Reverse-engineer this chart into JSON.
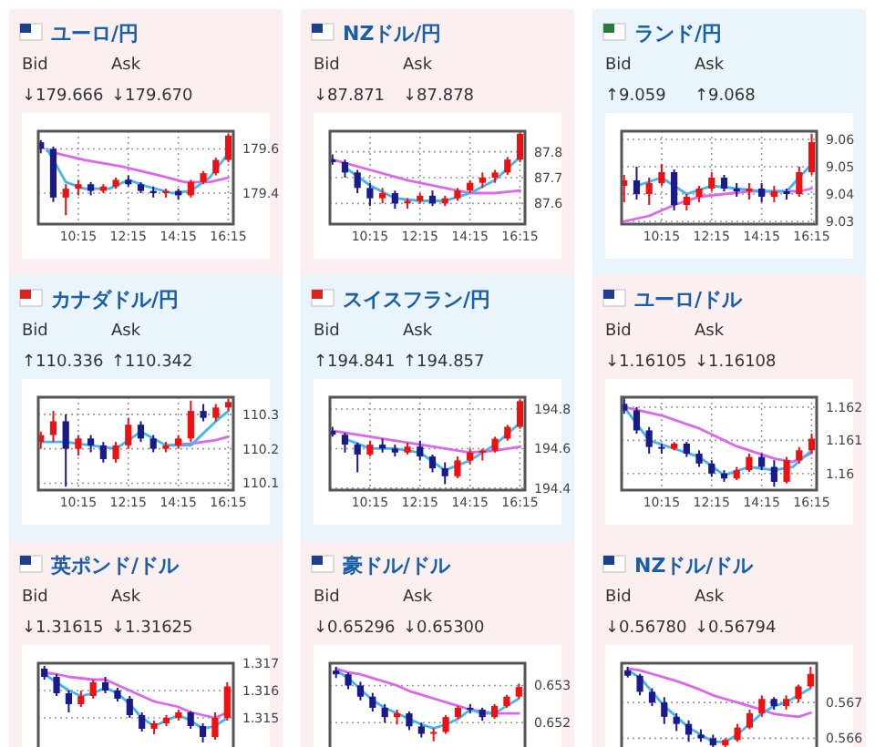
{
  "chart_data": [
    {
      "type": "candlestick",
      "title": "ユーロ/円",
      "annotations": [
        "Bid",
        "Ask",
        "↓179.666",
        "↓179.670"
      ],
      "x": [
        8.75,
        9.25,
        9.75,
        10.25,
        10.75,
        11.25,
        11.75,
        12.25,
        12.75,
        13.25,
        13.75,
        14.25,
        14.75,
        15.25,
        15.75,
        16.25
      ],
      "ohlc": [
        [
          179.63,
          179.64,
          179.58,
          179.6
        ],
        [
          179.6,
          179.61,
          179.36,
          179.38
        ],
        [
          179.38,
          179.44,
          179.3,
          179.42
        ],
        [
          179.42,
          179.46,
          179.39,
          179.44
        ],
        [
          179.44,
          179.45,
          179.39,
          179.41
        ],
        [
          179.41,
          179.44,
          179.4,
          179.43
        ],
        [
          179.43,
          179.47,
          179.42,
          179.46
        ],
        [
          179.46,
          179.48,
          179.43,
          179.44
        ],
        [
          179.44,
          179.45,
          179.4,
          179.41
        ],
        [
          179.41,
          179.43,
          179.38,
          179.4
        ],
        [
          179.4,
          179.42,
          179.38,
          179.41
        ],
        [
          179.41,
          179.42,
          179.37,
          179.39
        ],
        [
          179.39,
          179.46,
          179.38,
          179.45
        ],
        [
          179.45,
          179.5,
          179.44,
          179.49
        ],
        [
          179.49,
          179.56,
          179.48,
          179.55
        ],
        [
          179.55,
          179.67,
          179.54,
          179.66
        ]
      ],
      "colors": [
        "#1a1a8c",
        "#1a1a8c",
        "#ee1111",
        "#ee1111",
        "#1a1a8c",
        "#ee1111",
        "#ee1111",
        "#1a1a8c",
        "#1a1a8c",
        "#1a1a8c",
        "#ee1111",
        "#1a1a8c",
        "#ee1111",
        "#ee1111",
        "#ee1111",
        "#ee1111"
      ],
      "series": [
        {
          "type": "line",
          "color": "#dd66ee",
          "x": [
            9.0,
            10.5,
            12.0,
            13.5,
            14.5,
            15.5,
            16.25
          ],
          "values": [
            179.59,
            179.55,
            179.52,
            179.48,
            179.45,
            179.45,
            179.47
          ]
        },
        {
          "type": "line",
          "color": "#44b4f4",
          "x": [
            9.0,
            9.75,
            10.5,
            11.5,
            12.25,
            13.0,
            14.0,
            14.75,
            15.5,
            16.25
          ],
          "values": [
            179.6,
            179.45,
            179.42,
            179.42,
            179.46,
            179.43,
            179.4,
            179.41,
            179.47,
            179.58
          ]
        }
      ],
      "xlim": [
        8.65,
        16.45
      ],
      "ylim": [
        179.26,
        179.68
      ],
      "xticks": [
        {
          "value": 10.25,
          "label": "10:15"
        },
        {
          "value": 12.25,
          "label": "12:15"
        },
        {
          "value": 14.25,
          "label": "14:15"
        },
        {
          "value": 16.25,
          "label": "16:15"
        }
      ],
      "yticks": [
        179.4,
        179.6
      ],
      "grid": true
    },
    {
      "type": "candlestick",
      "title": "NZドル/円",
      "annotations": [
        "Bid",
        "Ask",
        "↓87.871",
        "↓87.878"
      ],
      "x": [
        8.75,
        9.25,
        9.75,
        10.25,
        10.75,
        11.25,
        11.75,
        12.25,
        12.75,
        13.25,
        13.75,
        14.25,
        14.75,
        15.25,
        15.75,
        16.25
      ],
      "ohlc": [
        [
          87.77,
          87.79,
          87.75,
          87.76
        ],
        [
          87.76,
          87.77,
          87.7,
          87.72
        ],
        [
          87.72,
          87.73,
          87.64,
          87.66
        ],
        [
          87.66,
          87.68,
          87.59,
          87.62
        ],
        [
          87.62,
          87.66,
          87.6,
          87.64
        ],
        [
          87.64,
          87.65,
          87.58,
          87.6
        ],
        [
          87.6,
          87.62,
          87.58,
          87.61
        ],
        [
          87.61,
          87.64,
          87.6,
          87.63
        ],
        [
          87.63,
          87.65,
          87.59,
          87.6
        ],
        [
          87.6,
          87.63,
          87.59,
          87.62
        ],
        [
          87.62,
          87.66,
          87.61,
          87.65
        ],
        [
          87.65,
          87.69,
          87.64,
          87.68
        ],
        [
          87.68,
          87.72,
          87.66,
          87.7
        ],
        [
          87.7,
          87.73,
          87.68,
          87.72
        ],
        [
          87.72,
          87.78,
          87.71,
          87.77
        ],
        [
          87.77,
          87.875,
          87.76,
          87.87
        ]
      ],
      "colors": [
        "#1a1a8c",
        "#1a1a8c",
        "#1a1a8c",
        "#1a1a8c",
        "#ee1111",
        "#1a1a8c",
        "#ee1111",
        "#ee1111",
        "#1a1a8c",
        "#ee1111",
        "#ee1111",
        "#ee1111",
        "#ee1111",
        "#ee1111",
        "#ee1111",
        "#ee1111"
      ],
      "series": [
        {
          "type": "line",
          "color": "#dd66ee",
          "x": [
            8.75,
            10.25,
            11.75,
            13.25,
            14.25,
            15.25,
            16.25
          ],
          "values": [
            87.77,
            87.73,
            87.69,
            87.66,
            87.64,
            87.64,
            87.65
          ]
        },
        {
          "type": "line",
          "color": "#44b4f4",
          "x": [
            9.25,
            10.25,
            11.25,
            12.25,
            13.25,
            14.25,
            15.25,
            16.25
          ],
          "values": [
            87.74,
            87.67,
            87.62,
            87.61,
            87.61,
            87.64,
            87.69,
            87.78
          ]
        }
      ],
      "xlim": [
        8.65,
        16.45
      ],
      "ylim": [
        87.52,
        87.88
      ],
      "xticks": [
        {
          "value": 10.25,
          "label": "10:15"
        },
        {
          "value": 12.25,
          "label": "12:15"
        },
        {
          "value": 14.25,
          "label": "14:15"
        },
        {
          "value": 16.25,
          "label": "16:15"
        }
      ],
      "yticks": [
        87.6,
        87.7,
        87.8
      ],
      "grid": true
    },
    {
      "type": "candlestick",
      "title": "ランド/円",
      "annotations": [
        "Bid",
        "Ask",
        "↑9.059",
        "↑9.068"
      ],
      "x": [
        8.75,
        9.25,
        9.75,
        10.25,
        10.75,
        11.25,
        11.75,
        12.25,
        12.75,
        13.25,
        13.75,
        14.25,
        14.75,
        15.25,
        15.75,
        16.25
      ],
      "ohlc": [
        [
          9.043,
          9.047,
          9.037,
          9.045
        ],
        [
          9.045,
          9.05,
          9.038,
          9.04
        ],
        [
          9.04,
          9.046,
          9.036,
          9.044
        ],
        [
          9.044,
          9.051,
          9.043,
          9.048
        ],
        [
          9.048,
          9.049,
          9.034,
          9.036
        ],
        [
          9.036,
          9.04,
          9.034,
          9.039
        ],
        [
          9.039,
          9.043,
          9.037,
          9.042
        ],
        [
          9.042,
          9.048,
          9.041,
          9.046
        ],
        [
          9.046,
          9.047,
          9.041,
          9.042
        ],
        [
          9.042,
          9.044,
          9.039,
          9.041
        ],
        [
          9.041,
          9.044,
          9.038,
          9.042
        ],
        [
          9.042,
          9.044,
          9.037,
          9.039
        ],
        [
          9.039,
          9.043,
          9.037,
          9.041
        ],
        [
          9.041,
          9.042,
          9.038,
          9.04
        ],
        [
          9.04,
          9.05,
          9.039,
          9.048
        ],
        [
          9.048,
          9.062,
          9.047,
          9.059
        ]
      ],
      "colors": [
        "#ee1111",
        "#1a1a8c",
        "#ee1111",
        "#ee1111",
        "#1a1a8c",
        "#ee1111",
        "#ee1111",
        "#ee1111",
        "#1a1a8c",
        "#1a1a8c",
        "#ee1111",
        "#1a1a8c",
        "#ee1111",
        "#1a1a8c",
        "#ee1111",
        "#ee1111"
      ],
      "series": [
        {
          "type": "line",
          "color": "#dd66ee",
          "x": [
            8.75,
            9.75,
            10.75,
            11.75,
            12.75,
            13.75,
            14.75,
            15.75,
            16.25
          ],
          "values": [
            9.03,
            9.032,
            9.036,
            9.039,
            9.04,
            9.041,
            9.041,
            9.041,
            9.042
          ]
        },
        {
          "type": "line",
          "color": "#44b4f4",
          "x": [
            9.25,
            10.25,
            11.25,
            12.25,
            13.25,
            14.25,
            15.25,
            16.25
          ],
          "values": [
            9.043,
            9.046,
            9.04,
            9.043,
            9.042,
            9.041,
            9.041,
            9.051
          ]
        }
      ],
      "xlim": [
        8.65,
        16.45
      ],
      "ylim": [
        9.029,
        9.063
      ],
      "xticks": [
        {
          "value": 10.25,
          "label": "10:15"
        },
        {
          "value": 12.25,
          "label": "12:15"
        },
        {
          "value": 14.25,
          "label": "14:15"
        },
        {
          "value": 16.25,
          "label": "16:15"
        }
      ],
      "yticks": [
        9.03,
        9.04,
        9.05,
        9.06
      ],
      "grid": true
    },
    {
      "type": "candlestick",
      "title": "カナダドル/円",
      "annotations": [
        "Bid",
        "Ask",
        "↑110.336",
        "↑110.342"
      ],
      "x": [
        8.75,
        9.25,
        9.75,
        10.25,
        10.75,
        11.25,
        11.75,
        12.25,
        12.75,
        13.25,
        13.75,
        14.25,
        14.75,
        15.25,
        15.75,
        16.25
      ],
      "ohlc": [
        [
          110.22,
          110.25,
          110.2,
          110.24
        ],
        [
          110.24,
          110.31,
          110.22,
          110.28
        ],
        [
          110.28,
          110.3,
          110.09,
          110.2
        ],
        [
          110.2,
          110.24,
          110.18,
          110.23
        ],
        [
          110.23,
          110.24,
          110.19,
          110.21
        ],
        [
          110.21,
          110.22,
          110.16,
          110.17
        ],
        [
          110.17,
          110.22,
          110.16,
          110.21
        ],
        [
          110.21,
          110.29,
          110.2,
          110.27
        ],
        [
          110.27,
          110.28,
          110.22,
          110.23
        ],
        [
          110.23,
          110.24,
          110.19,
          110.2
        ],
        [
          110.2,
          110.22,
          110.19,
          110.21
        ],
        [
          110.21,
          110.24,
          110.2,
          110.23
        ],
        [
          110.23,
          110.34,
          110.22,
          110.31
        ],
        [
          110.31,
          110.33,
          110.28,
          110.29
        ],
        [
          110.29,
          110.33,
          110.28,
          110.32
        ],
        [
          110.32,
          110.345,
          110.31,
          110.336
        ]
      ],
      "colors": [
        "#ee1111",
        "#ee1111",
        "#1a1a8c",
        "#ee1111",
        "#1a1a8c",
        "#1a1a8c",
        "#ee1111",
        "#ee1111",
        "#1a1a8c",
        "#1a1a8c",
        "#ee1111",
        "#ee1111",
        "#ee1111",
        "#1a1a8c",
        "#ee1111",
        "#ee1111"
      ],
      "series": [
        {
          "type": "line",
          "color": "#dd66ee",
          "x": [
            13.75,
            14.75,
            15.75,
            16.25
          ],
          "values": [
            110.21,
            110.215,
            110.225,
            110.235
          ]
        },
        {
          "type": "line",
          "color": "#44b4f4",
          "x": [
            8.75,
            9.75,
            10.75,
            11.75,
            12.75,
            13.75,
            14.75,
            15.75,
            16.25
          ],
          "values": [
            110.22,
            110.22,
            110.21,
            110.2,
            110.25,
            110.21,
            110.21,
            110.28,
            110.31
          ]
        }
      ],
      "xlim": [
        8.65,
        16.45
      ],
      "ylim": [
        110.08,
        110.35
      ],
      "xticks": [
        {
          "value": 10.25,
          "label": "10:15"
        },
        {
          "value": 12.25,
          "label": "12:15"
        },
        {
          "value": 14.25,
          "label": "14:15"
        },
        {
          "value": 16.25,
          "label": "16:15"
        }
      ],
      "yticks": [
        110.1,
        110.2,
        110.3
      ],
      "grid": true
    },
    {
      "type": "candlestick",
      "title": "スイスフラン/円",
      "annotations": [
        "Bid",
        "Ask",
        "↑194.841",
        "↑194.857"
      ],
      "x": [
        8.75,
        9.25,
        9.75,
        10.25,
        10.75,
        11.25,
        11.75,
        12.25,
        12.75,
        13.25,
        13.75,
        14.25,
        14.75,
        15.25,
        15.75,
        16.25
      ],
      "ohlc": [
        [
          194.69,
          194.71,
          194.66,
          194.67
        ],
        [
          194.67,
          194.68,
          194.58,
          194.62
        ],
        [
          194.62,
          194.63,
          194.48,
          194.57
        ],
        [
          194.57,
          194.64,
          194.56,
          194.62
        ],
        [
          194.62,
          194.65,
          194.58,
          194.6
        ],
        [
          194.6,
          194.62,
          194.56,
          194.58
        ],
        [
          194.58,
          194.63,
          194.57,
          194.61
        ],
        [
          194.61,
          194.64,
          194.54,
          194.56
        ],
        [
          194.56,
          194.57,
          194.48,
          194.5
        ],
        [
          194.5,
          194.53,
          194.42,
          194.46
        ],
        [
          194.46,
          194.56,
          194.45,
          194.54
        ],
        [
          194.54,
          194.6,
          194.52,
          194.58
        ],
        [
          194.58,
          194.6,
          194.54,
          194.59
        ],
        [
          194.59,
          194.66,
          194.58,
          194.65
        ],
        [
          194.65,
          194.72,
          194.64,
          194.71
        ],
        [
          194.71,
          194.85,
          194.7,
          194.84
        ]
      ],
      "colors": [
        "#1a1a8c",
        "#1a1a8c",
        "#1a1a8c",
        "#ee1111",
        "#1a1a8c",
        "#1a1a8c",
        "#ee1111",
        "#1a1a8c",
        "#1a1a8c",
        "#1a1a8c",
        "#ee1111",
        "#ee1111",
        "#ee1111",
        "#ee1111",
        "#ee1111",
        "#ee1111"
      ],
      "series": [
        {
          "type": "line",
          "color": "#dd66ee",
          "x": [
            8.75,
            10.25,
            11.75,
            13.25,
            14.25,
            15.25,
            16.25
          ],
          "values": [
            194.69,
            194.66,
            194.63,
            194.6,
            194.58,
            194.59,
            194.61
          ]
        },
        {
          "type": "line",
          "color": "#44b4f4",
          "x": [
            9.25,
            10.25,
            11.25,
            12.25,
            13.25,
            14.25,
            15.25,
            16.25
          ],
          "values": [
            194.65,
            194.6,
            194.6,
            194.58,
            194.49,
            194.54,
            194.62,
            194.73
          ]
        }
      ],
      "xlim": [
        8.65,
        16.45
      ],
      "ylim": [
        194.39,
        194.86
      ],
      "xticks": [
        {
          "value": 10.25,
          "label": "10:15"
        },
        {
          "value": 12.25,
          "label": "12:15"
        },
        {
          "value": 14.25,
          "label": "14:15"
        },
        {
          "value": 16.25,
          "label": "16:15"
        }
      ],
      "yticks": [
        194.4,
        194.6,
        194.8
      ],
      "grid": true
    },
    {
      "type": "candlestick",
      "title": "ユーロ/ドル",
      "annotations": [
        "Bid",
        "Ask",
        "↓1.16105",
        "↓1.16108"
      ],
      "x": [
        8.75,
        9.25,
        9.75,
        10.25,
        10.75,
        11.25,
        11.75,
        12.25,
        12.75,
        13.25,
        13.75,
        14.25,
        14.75,
        15.25,
        15.75,
        16.25
      ],
      "ohlc": [
        [
          1.1621,
          1.1623,
          1.1618,
          1.1619
        ],
        [
          1.1619,
          1.162,
          1.1612,
          1.1613
        ],
        [
          1.1613,
          1.1614,
          1.1606,
          1.1608
        ],
        [
          1.1608,
          1.1609,
          1.1606,
          1.16075
        ],
        [
          1.16075,
          1.16095,
          1.1607,
          1.1609
        ],
        [
          1.1609,
          1.16095,
          1.1605,
          1.1606
        ],
        [
          1.1606,
          1.1607,
          1.1602,
          1.1603
        ],
        [
          1.1603,
          1.1604,
          1.1599,
          1.16
        ],
        [
          1.16,
          1.1601,
          1.15975,
          1.15985
        ],
        [
          1.15985,
          1.1602,
          1.1598,
          1.1601
        ],
        [
          1.1601,
          1.1606,
          1.16005,
          1.1605
        ],
        [
          1.1605,
          1.1606,
          1.1601,
          1.1602
        ],
        [
          1.1602,
          1.1604,
          1.1596,
          1.15975
        ],
        [
          1.15975,
          1.1605,
          1.1597,
          1.1604
        ],
        [
          1.1604,
          1.1608,
          1.1603,
          1.1607
        ],
        [
          1.1607,
          1.1612,
          1.1606,
          1.16105
        ]
      ],
      "colors": [
        "#1a1a8c",
        "#1a1a8c",
        "#1a1a8c",
        "#1a1a8c",
        "#ee1111",
        "#1a1a8c",
        "#1a1a8c",
        "#1a1a8c",
        "#1a1a8c",
        "#ee1111",
        "#ee1111",
        "#1a1a8c",
        "#1a1a8c",
        "#ee1111",
        "#ee1111",
        "#ee1111"
      ],
      "series": [
        {
          "type": "line",
          "color": "#dd66ee",
          "x": [
            8.75,
            10.25,
            11.75,
            13.25,
            14.75,
            15.5,
            16.25
          ],
          "values": [
            1.162,
            1.16175,
            1.16136,
            1.16082,
            1.16045,
            1.16035,
            1.16062
          ]
        },
        {
          "type": "line",
          "color": "#44b4f4",
          "x": [
            8.75,
            9.75,
            10.75,
            11.75,
            12.75,
            13.75,
            14.75,
            15.5,
            16.25
          ],
          "values": [
            1.162,
            1.161,
            1.16075,
            1.1605,
            1.15995,
            1.1602,
            1.1601,
            1.1602,
            1.1607
          ]
        }
      ],
      "xlim": [
        8.65,
        16.45
      ],
      "ylim": [
        1.1595,
        1.1623
      ],
      "xticks": [
        {
          "value": 10.25,
          "label": "10:15"
        },
        {
          "value": 12.25,
          "label": "12:15"
        },
        {
          "value": 14.25,
          "label": "14:15"
        },
        {
          "value": 16.25,
          "label": "16:15"
        }
      ],
      "yticks": [
        1.16,
        1.161,
        1.162
      ],
      "grid": true
    },
    {
      "type": "candlestick",
      "title": "英ポンド/ドル",
      "annotations": [
        "Bid",
        "Ask",
        "↓1.31615",
        "↓1.31625"
      ],
      "categories": [
        null,
        null,
        null,
        null,
        null,
        null,
        null,
        null,
        null,
        null,
        null,
        null,
        null,
        null,
        null,
        null
      ],
      "ohlc": [
        [
          1.3168,
          1.3169,
          1.3164,
          1.3165
        ],
        [
          1.3165,
          1.3166,
          1.3158,
          1.3159
        ],
        [
          1.3159,
          1.316,
          1.3152,
          1.3155
        ],
        [
          1.3155,
          1.316,
          1.3154,
          1.3158
        ],
        [
          1.3158,
          1.3164,
          1.3157,
          1.3163
        ],
        [
          1.3163,
          1.3165,
          1.3159,
          1.316
        ],
        [
          1.316,
          1.3161,
          1.3156,
          1.3157
        ],
        [
          1.3157,
          1.3158,
          1.315,
          1.3151
        ],
        [
          1.3151,
          1.3152,
          1.3145,
          1.3146
        ],
        [
          1.3146,
          1.3149,
          1.3144,
          1.3148
        ],
        [
          1.3148,
          1.3151,
          1.3147,
          1.315
        ],
        [
          1.315,
          1.3153,
          1.3149,
          1.3152
        ],
        [
          1.3152,
          1.31525,
          1.3146,
          1.3147
        ],
        [
          1.3147,
          1.3148,
          1.3141,
          1.3143
        ],
        [
          1.3143,
          1.3152,
          1.3142,
          1.315
        ],
        [
          1.315,
          1.3163,
          1.3149,
          1.31615
        ]
      ],
      "colors": [
        "#1a1a8c",
        "#1a1a8c",
        "#1a1a8c",
        "#ee1111",
        "#ee1111",
        "#1a1a8c",
        "#1a1a8c",
        "#1a1a8c",
        "#1a1a8c",
        "#ee1111",
        "#ee1111",
        "#ee1111",
        "#1a1a8c",
        "#1a1a8c",
        "#ee1111",
        "#ee1111"
      ],
      "series": [
        {
          "type": "line",
          "color": "#dd66ee",
          "values": [
            1.31665,
            1.3166,
            1.3165,
            1.31645,
            1.3164,
            1.3164,
            1.3162,
            1.316,
            1.3158,
            1.3156,
            1.3155,
            1.3154,
            1.3152,
            1.3151,
            1.315,
            1.3152
          ]
        },
        {
          "type": "line",
          "color": "#44b4f4",
          "values": [
            1.3166,
            1.3163,
            1.316,
            1.3158,
            1.3159,
            1.3161,
            1.3159,
            1.3155,
            1.315,
            1.3147,
            1.3149,
            1.3151,
            1.3149,
            1.3146,
            1.3147,
            1.315
          ]
        }
      ],
      "ylim": [
        1.3136,
        1.317
      ],
      "yticks": [
        1.315,
        1.316,
        1.317
      ],
      "grid": "y"
    },
    {
      "type": "candlestick",
      "title": "豪ドル/ドル",
      "annotations": [
        "Bid",
        "Ask",
        "↓0.65296",
        "↓0.65300"
      ],
      "categories": [
        null,
        null,
        null,
        null,
        null,
        null,
        null,
        null,
        null,
        null,
        null,
        null,
        null,
        null,
        null,
        null
      ],
      "ohlc": [
        [
          0.6534,
          0.6535,
          0.6532,
          0.6533
        ],
        [
          0.6533,
          0.65335,
          0.6529,
          0.653
        ],
        [
          0.653,
          0.6531,
          0.6526,
          0.6527
        ],
        [
          0.6527,
          0.6528,
          0.6523,
          0.6524
        ],
        [
          0.6524,
          0.6525,
          0.652,
          0.65215
        ],
        [
          0.65215,
          0.65235,
          0.65195,
          0.65225
        ],
        [
          0.65225,
          0.6523,
          0.6518,
          0.6519
        ],
        [
          0.6519,
          0.652,
          0.6516,
          0.6517
        ],
        [
          0.6517,
          0.65185,
          0.6515,
          0.65175
        ],
        [
          0.65175,
          0.6522,
          0.6517,
          0.65215
        ],
        [
          0.65215,
          0.65245,
          0.6521,
          0.6524
        ],
        [
          0.6524,
          0.6525,
          0.65225,
          0.65235
        ],
        [
          0.65235,
          0.6524,
          0.65205,
          0.65215
        ],
        [
          0.65215,
          0.6525,
          0.6521,
          0.65245
        ],
        [
          0.65245,
          0.65275,
          0.6524,
          0.6527
        ],
        [
          0.6527,
          0.65305,
          0.65265,
          0.65296
        ]
      ],
      "colors": [
        "#1a1a8c",
        "#1a1a8c",
        "#1a1a8c",
        "#1a1a8c",
        "#1a1a8c",
        "#ee1111",
        "#1a1a8c",
        "#1a1a8c",
        "#ee1111",
        "#ee1111",
        "#ee1111",
        "#1a1a8c",
        "#1a1a8c",
        "#ee1111",
        "#ee1111",
        "#ee1111"
      ],
      "series": [
        {
          "type": "line",
          "color": "#dd66ee",
          "values": [
            0.65345,
            0.65335,
            0.6533,
            0.6532,
            0.6531,
            0.653,
            0.65285,
            0.65275,
            0.65265,
            0.65255,
            0.65245,
            0.65235,
            0.6523,
            0.65225,
            0.65225,
            0.65225
          ]
        },
        {
          "type": "line",
          "color": "#44b4f4",
          "values": [
            0.6534,
            0.6532,
            0.6529,
            0.6526,
            0.6524,
            0.65225,
            0.6521,
            0.65195,
            0.65185,
            0.65195,
            0.6521,
            0.65235,
            0.65225,
            0.65225,
            0.65245,
            0.65265
          ]
        }
      ],
      "ylim": [
        0.6511,
        0.6536
      ],
      "yticks": [
        0.652,
        0.653
      ],
      "grid": "y"
    },
    {
      "type": "candlestick",
      "title": "NZドル/ドル",
      "annotations": [
        "Bid",
        "Ask",
        "↓0.56780",
        "↓0.56794"
      ],
      "categories": [
        null,
        null,
        null,
        null,
        null,
        null,
        null,
        null,
        null,
        null,
        null,
        null,
        null,
        null,
        null,
        null
      ],
      "ohlc": [
        [
          0.5679,
          0.568,
          0.5677,
          0.56775
        ],
        [
          0.56775,
          0.5678,
          0.5672,
          0.5673
        ],
        [
          0.5673,
          0.5674,
          0.5669,
          0.567
        ],
        [
          0.567,
          0.56715,
          0.5664,
          0.5666
        ],
        [
          0.5666,
          0.5667,
          0.5662,
          0.5664
        ],
        [
          0.5664,
          0.5665,
          0.5659,
          0.5661
        ],
        [
          0.5661,
          0.56625,
          0.5659,
          0.566
        ],
        [
          0.566,
          0.5661,
          0.5657,
          0.5658
        ],
        [
          0.5658,
          0.566,
          0.56565,
          0.56595
        ],
        [
          0.56595,
          0.5664,
          0.5659,
          0.5663
        ],
        [
          0.5663,
          0.5668,
          0.56625,
          0.5667
        ],
        [
          0.5667,
          0.5672,
          0.5666,
          0.5671
        ],
        [
          0.5671,
          0.56715,
          0.5668,
          0.5669
        ],
        [
          0.5669,
          0.5672,
          0.5668,
          0.5671
        ],
        [
          0.5671,
          0.5675,
          0.567,
          0.56745
        ],
        [
          0.56745,
          0.568,
          0.5674,
          0.5678
        ]
      ],
      "colors": [
        "#1a1a8c",
        "#1a1a8c",
        "#1a1a8c",
        "#1a1a8c",
        "#1a1a8c",
        "#1a1a8c",
        "#1a1a8c",
        "#1a1a8c",
        "#ee1111",
        "#ee1111",
        "#ee1111",
        "#ee1111",
        "#1a1a8c",
        "#ee1111",
        "#ee1111",
        "#ee1111"
      ],
      "series": [
        {
          "type": "line",
          "color": "#dd66ee",
          "values": [
            0.56795,
            0.5679,
            0.5678,
            0.5677,
            0.5676,
            0.56748,
            0.56735,
            0.5672,
            0.5671,
            0.567,
            0.5669,
            0.5668,
            0.56668,
            0.56664,
            0.5666,
            0.56671
          ]
        },
        {
          "type": "line",
          "color": "#44b4f4",
          "values": [
            0.5679,
            0.5677,
            0.5673,
            0.5669,
            0.5666,
            0.5663,
            0.5661,
            0.5659,
            0.5659,
            0.5661,
            0.5664,
            0.5667,
            0.5669,
            0.567,
            0.5672,
            0.5674
          ]
        }
      ],
      "ylim": [
        0.5655,
        0.5681
      ],
      "yticks": [
        0.566,
        0.567
      ],
      "grid": "y"
    }
  ]
}
